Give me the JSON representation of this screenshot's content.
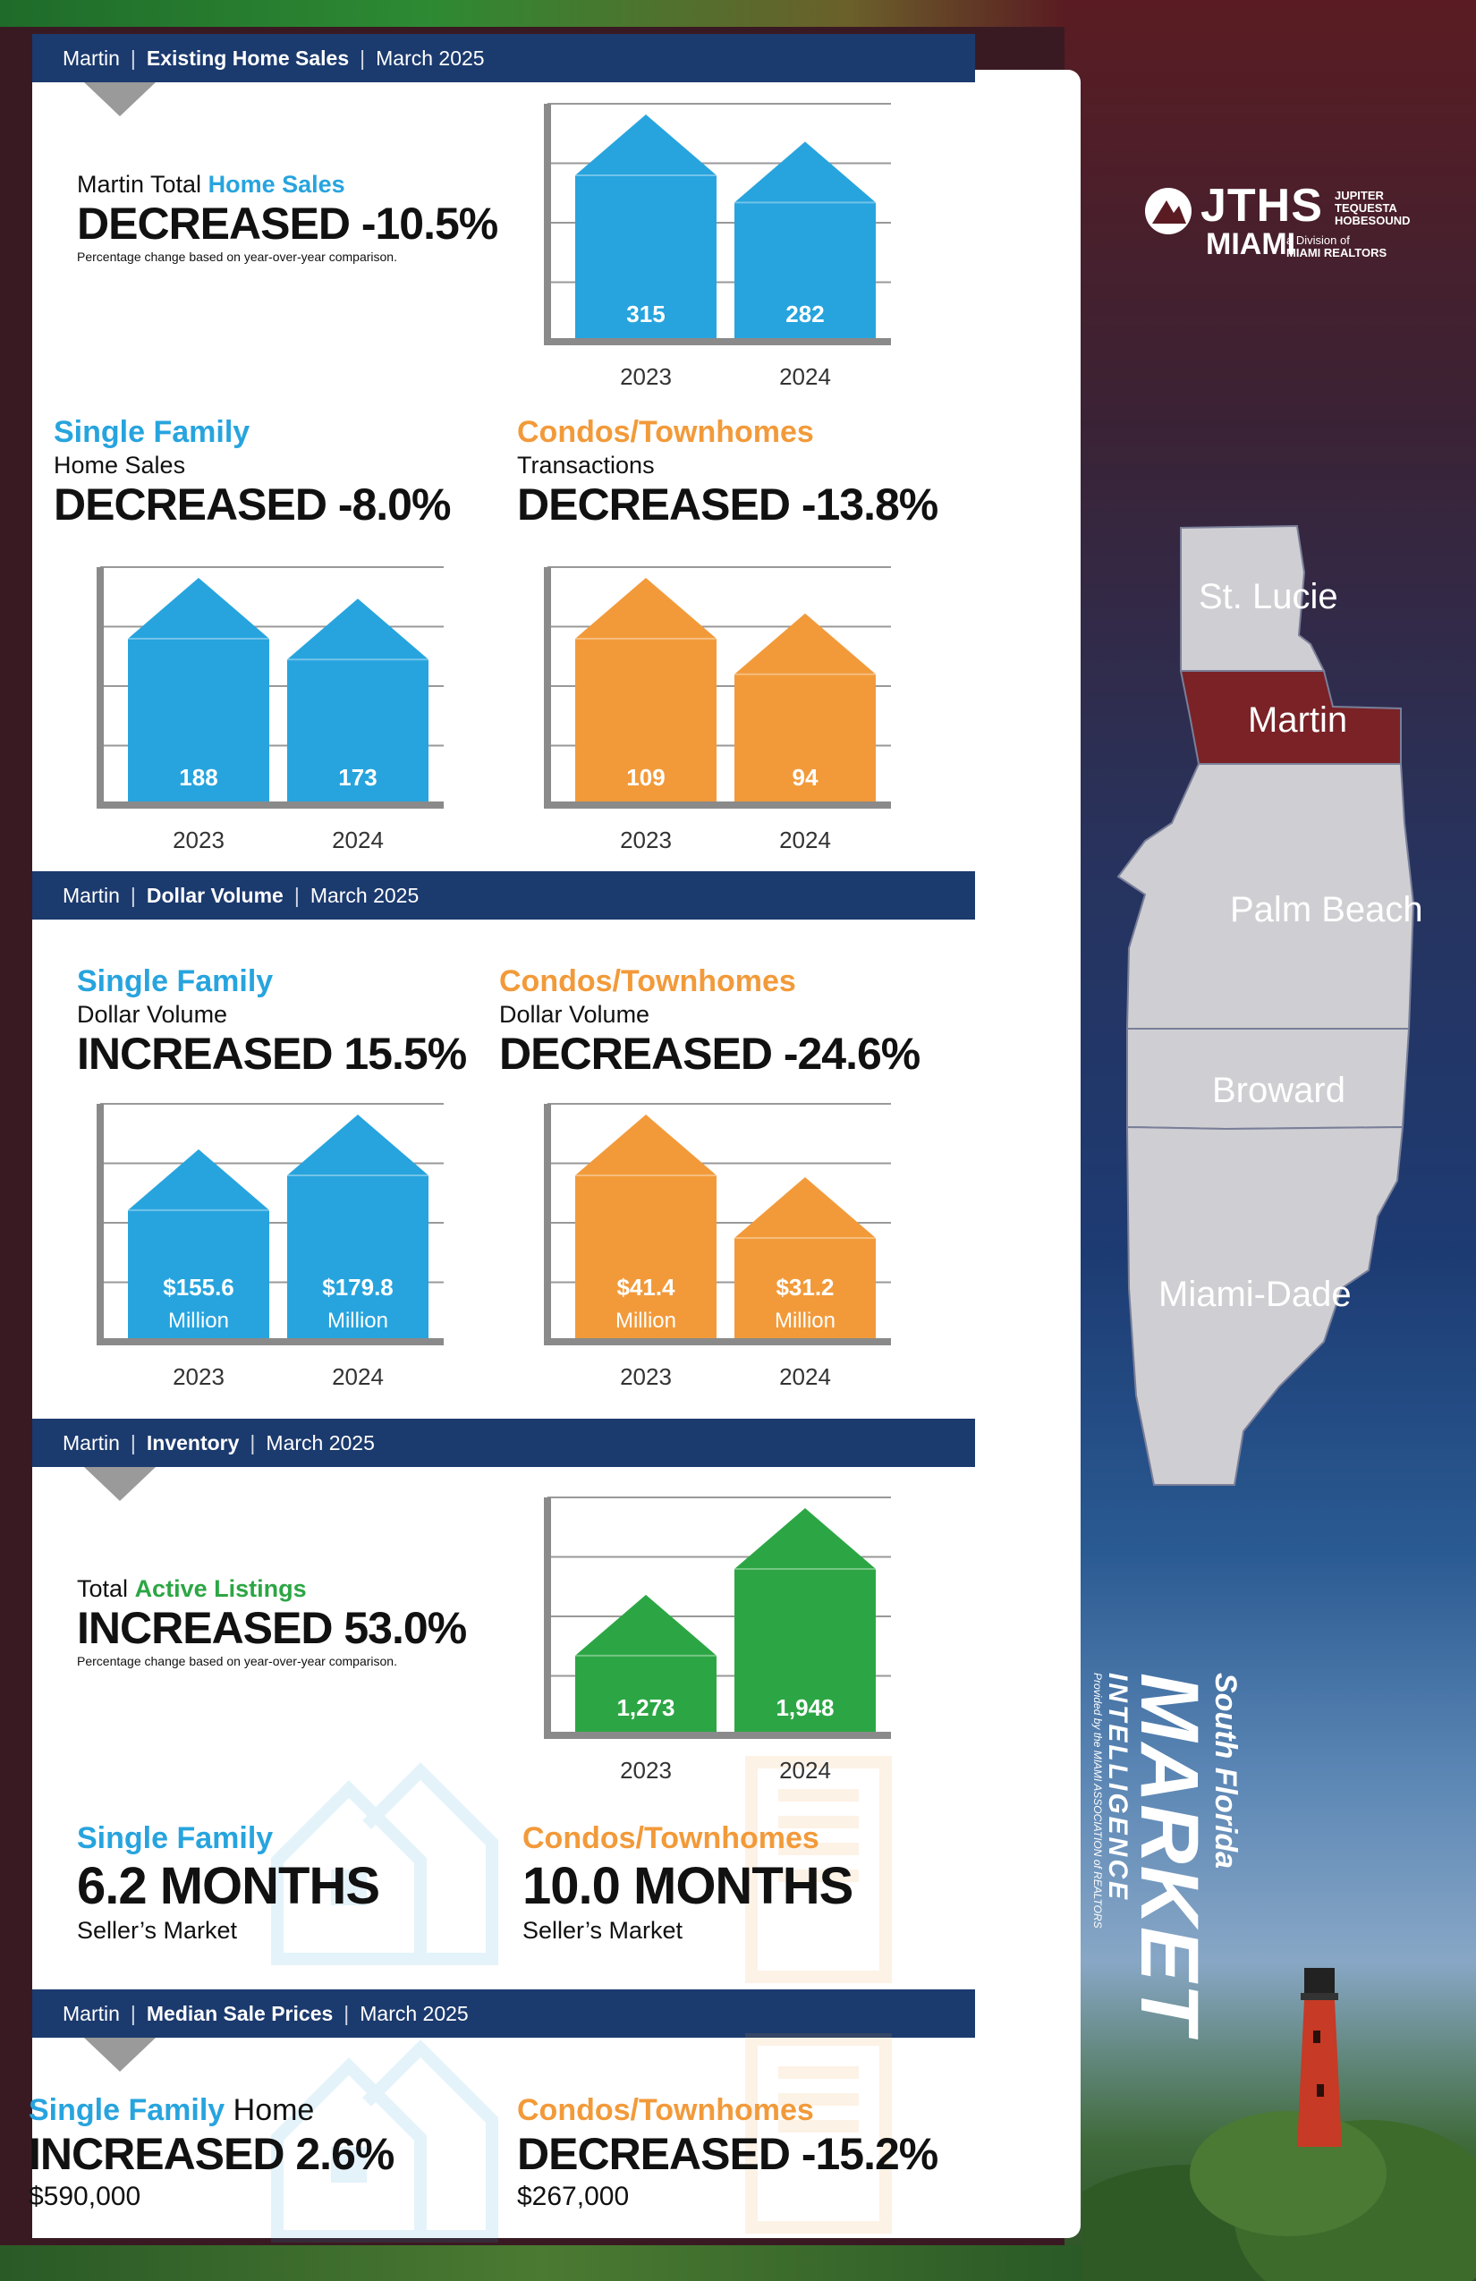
{
  "sections": {
    "existing": {
      "area": "Martin",
      "title": "Existing Home Sales",
      "date": "March 2025"
    },
    "dollar": {
      "area": "Martin",
      "title": "Dollar Volume",
      "date": "March 2025"
    },
    "inventory": {
      "area": "Martin",
      "title": "Inventory",
      "date": "March 2025"
    },
    "median": {
      "area": "Martin",
      "title": "Median Sale Prices",
      "date": "March 2025"
    }
  },
  "total_sales": {
    "prefix": "Martin Total",
    "highlight": "Home Sales",
    "headline": "DECREASED -10.5%",
    "note": "Percentage change based on year-over-year comparison."
  },
  "sf_sales": {
    "category": "Single Family",
    "sub": "Home Sales",
    "headline": "DECREASED -8.0%"
  },
  "condo_sales": {
    "category": "Condos/Townhomes",
    "sub": "Transactions",
    "headline": "DECREASED -13.8%"
  },
  "sf_volume": {
    "category": "Single Family",
    "sub": "Dollar Volume",
    "headline": "INCREASED 15.5%"
  },
  "condo_volume": {
    "category": "Condos/Townhomes",
    "sub": "Dollar Volume",
    "headline": "DECREASED -24.6%"
  },
  "listings": {
    "prefix": "Total",
    "highlight": "Active Listings",
    "headline": "INCREASED 53.0%",
    "note": "Percentage change based on year-over-year comparison."
  },
  "sf_months": {
    "category": "Single Family",
    "headline": "6.2 MONTHS",
    "sub": "Seller’s Market"
  },
  "condo_months": {
    "category": "Condos/Townhomes",
    "headline": "10.0 MONTHS",
    "sub": "Seller’s Market"
  },
  "sf_median": {
    "category": "Single Family",
    "suffix": "Home",
    "headline": "INCREASED 2.6%",
    "price": "$590,000"
  },
  "condo_median": {
    "category": "Condos/Townhomes",
    "headline": "DECREASED -15.2%",
    "price": "$267,000"
  },
  "map": {
    "counties": [
      "St. Lucie",
      "Martin",
      "Palm Beach",
      "Broward",
      "Miami-Dade"
    ],
    "highlight": "Martin",
    "highlight_color": "#7a2226"
  },
  "logo": {
    "name": "JTHS",
    "lines": [
      "JUPITER",
      "TEQUESTA",
      "HOBESOUND"
    ],
    "miami": "MIAMI",
    "division": [
      "a Division of",
      "MIAMI REALTORS"
    ]
  },
  "brand": {
    "line1": "South Florida",
    "line2": "MARKET",
    "line3": "INTELLIGENCE",
    "line4": "Provided by the MIAMI ASSOCIATION of REALTORS"
  },
  "colors": {
    "blue": "#27a4de",
    "orange": "#f29a3a",
    "green": "#2ca644",
    "navy": "#1b3a6e"
  },
  "chart_data": [
    {
      "type": "bar",
      "id": "total_sales",
      "categories": [
        "2023",
        "2024"
      ],
      "values": [
        315,
        282
      ],
      "labels": [
        "315",
        "282"
      ],
      "color": "#27a4de"
    },
    {
      "type": "bar",
      "id": "sf_sales",
      "categories": [
        "2023",
        "2024"
      ],
      "values": [
        188,
        173
      ],
      "labels": [
        "188",
        "173"
      ],
      "color": "#27a4de"
    },
    {
      "type": "bar",
      "id": "condo_sales",
      "categories": [
        "2023",
        "2024"
      ],
      "values": [
        109,
        94
      ],
      "labels": [
        "109",
        "94"
      ],
      "color": "#f29a3a"
    },
    {
      "type": "bar",
      "id": "sf_volume",
      "categories": [
        "2023",
        "2024"
      ],
      "values": [
        155.6,
        179.8
      ],
      "labels": [
        "$155.6",
        "$179.8"
      ],
      "unit": "Million",
      "color": "#27a4de"
    },
    {
      "type": "bar",
      "id": "condo_volume",
      "categories": [
        "2023",
        "2024"
      ],
      "values": [
        41.4,
        31.2
      ],
      "labels": [
        "$41.4",
        "$31.2"
      ],
      "unit": "Million",
      "color": "#f29a3a"
    },
    {
      "type": "bar",
      "id": "listings",
      "categories": [
        "2023",
        "2024"
      ],
      "values": [
        1273,
        1948
      ],
      "labels": [
        "1,273",
        "1,948"
      ],
      "color": "#2ca644"
    }
  ]
}
